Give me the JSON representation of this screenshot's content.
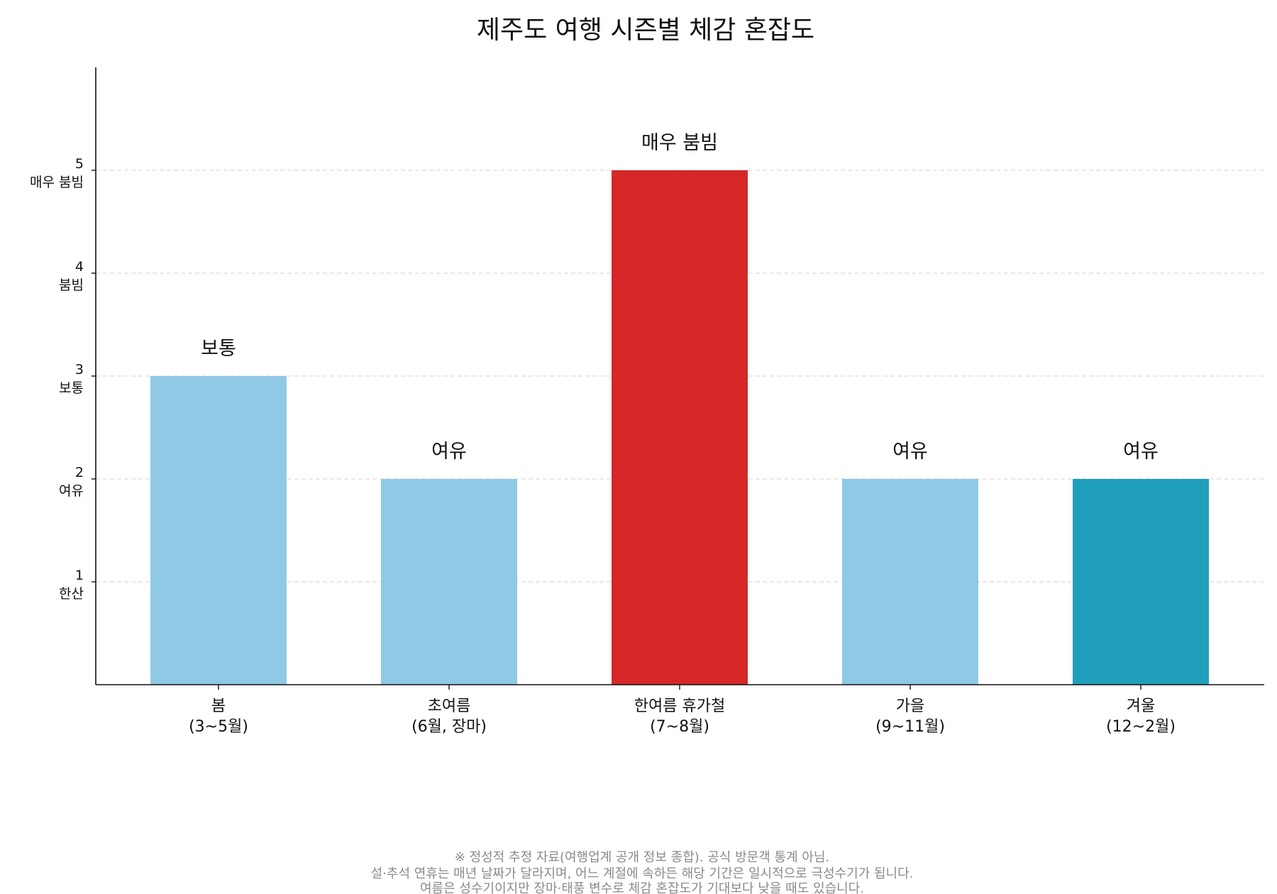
{
  "chart_data": {
    "type": "bar",
    "title": "제주도 여행 시즌별 체감 혼잡도",
    "xlabel": "",
    "ylabel": "",
    "ylim": [
      0,
      6
    ],
    "grid": "y-dashed",
    "y_ticks": [
      {
        "value": 1,
        "label": "한산"
      },
      {
        "value": 2,
        "label": "여유"
      },
      {
        "value": 3,
        "label": "보통"
      },
      {
        "value": 4,
        "label": "붐빔"
      },
      {
        "value": 5,
        "label": "매우 붐빔"
      }
    ],
    "categories": [
      {
        "line1": "봄",
        "line2": "(3~5월)"
      },
      {
        "line1": "초여름",
        "line2": "(6월, 장마)"
      },
      {
        "line1": "한여름 휴가철",
        "line2": "(7~8월)"
      },
      {
        "line1": "가을",
        "line2": "(9~11월)"
      },
      {
        "line1": "겨울",
        "line2": "(12~2월)"
      }
    ],
    "values": [
      3,
      2,
      5,
      2,
      2
    ],
    "value_labels": [
      "보통",
      "여유",
      "매우 붐빔",
      "여유",
      "여유"
    ],
    "colors": [
      "#90c9e5",
      "#90c9e5",
      "#d62728",
      "#90c9e5",
      "#219ebc"
    ],
    "footnote": [
      "※ 정성적 추정 자료(여행업계 공개 정보 종합). 공식 방문객 통계 아님.",
      "설·추석 연휴는 매년 날짜가 달라지며, 어느 계절에 속하든 해당 기간은 일시적으로 극성수기가 됩니다.",
      "여름은 성수기이지만 장마·태풍 변수로 체감 혼잡도가 기대보다 낮을 때도 있습니다."
    ]
  }
}
